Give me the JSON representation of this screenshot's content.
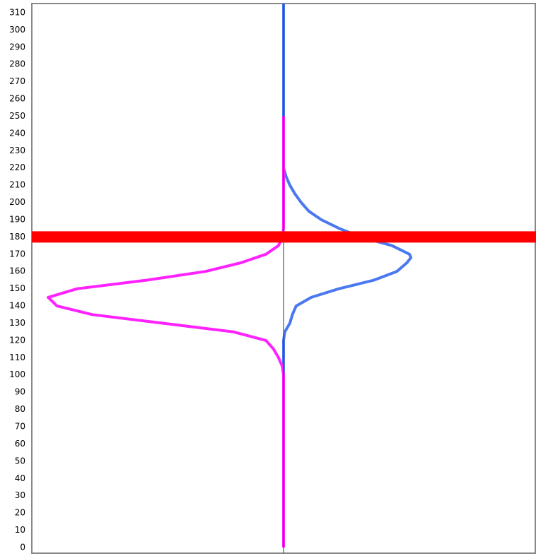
{
  "chart_data": {
    "type": "line",
    "ylim": [
      -3.3,
      315.3
    ],
    "yticks": [
      0,
      10,
      20,
      30,
      40,
      50,
      60,
      70,
      80,
      90,
      100,
      110,
      120,
      130,
      140,
      150,
      160,
      170,
      180,
      190,
      200,
      210,
      220,
      230,
      240,
      250,
      260,
      270,
      280,
      290,
      300,
      310
    ],
    "xlim": [
      -1,
      1
    ],
    "center_line": 0,
    "hline": {
      "value": 180,
      "color": "#ff0000"
    },
    "series": [
      {
        "color": "#4a78f0",
        "y": [
          0,
          120,
          125,
          130,
          135,
          140,
          145,
          150,
          155,
          160,
          165,
          168,
          170,
          175,
          180,
          185,
          190,
          195,
          200,
          205,
          210,
          215,
          220,
          315.3
        ],
        "values": [
          0,
          0,
          0.005,
          0.025,
          0.035,
          0.05,
          0.11,
          0.22,
          0.36,
          0.45,
          0.49,
          0.506,
          0.5,
          0.43,
          0.306,
          0.22,
          0.15,
          0.1,
          0.07,
          0.045,
          0.025,
          0.01,
          0,
          0
        ]
      },
      {
        "color": "#ff22ff",
        "y": [
          0,
          100,
          105,
          110,
          115,
          120,
          125,
          130,
          135,
          140,
          145,
          150,
          155,
          160,
          165,
          170,
          175,
          180,
          185,
          250
        ],
        "values": [
          0,
          0,
          -0.005,
          -0.02,
          -0.04,
          -0.07,
          -0.2,
          -0.48,
          -0.76,
          -0.9,
          -0.935,
          -0.82,
          -0.54,
          -0.31,
          -0.17,
          -0.07,
          -0.02,
          -0.005,
          0,
          0
        ]
      }
    ]
  }
}
